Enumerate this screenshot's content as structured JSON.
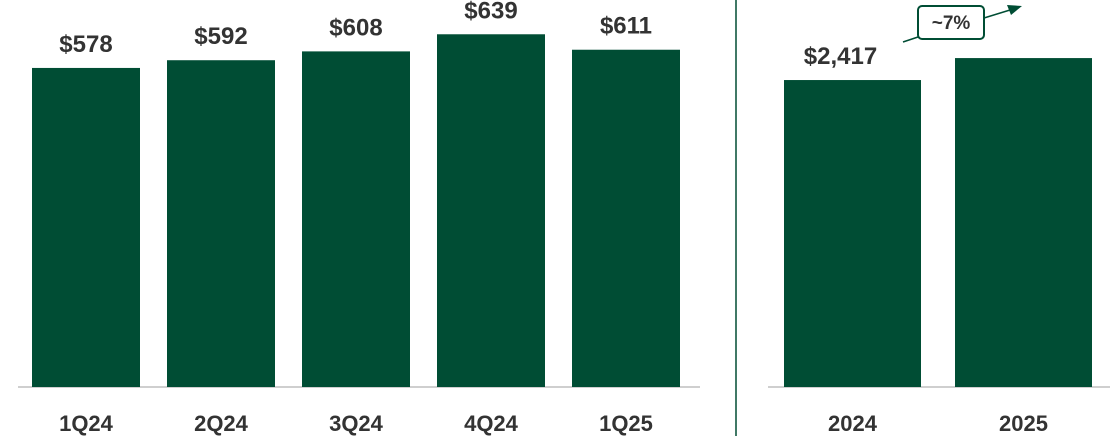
{
  "chart_data": [
    {
      "type": "bar",
      "categories": [
        "1Q24",
        "2Q24",
        "3Q24",
        "4Q24",
        "1Q25"
      ],
      "values": [
        578,
        592,
        608,
        639,
        611
      ],
      "value_labels": [
        "$578",
        "$592",
        "$608",
        "$639",
        "$611"
      ],
      "grid": false
    },
    {
      "type": "bar",
      "categories": [
        "2024",
        "2025"
      ],
      "values": [
        2417,
        2590
      ],
      "value_labels": [
        "$2,417",
        ""
      ],
      "annotation": "~7%",
      "grid": false
    }
  ],
  "colors": {
    "bar": "#004D34",
    "axis": "#BFBFBF",
    "divider": "#004D34",
    "text": "#333333"
  }
}
